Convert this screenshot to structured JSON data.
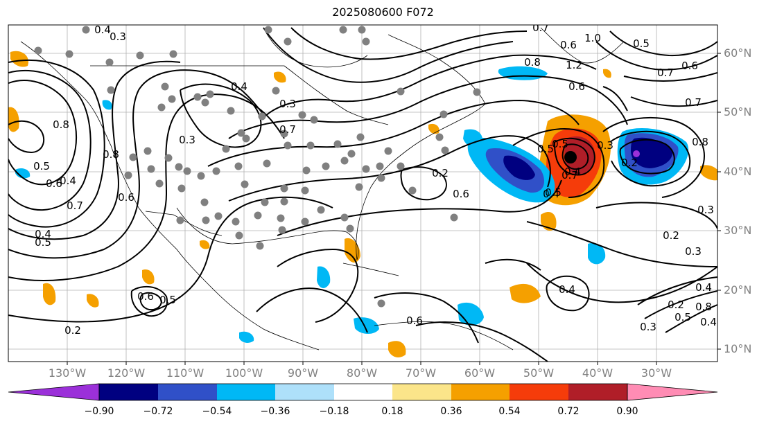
{
  "title": "2025080600 F072",
  "map": {
    "lat_labels": [
      "60°N",
      "50°N",
      "40°N",
      "30°N",
      "20°N",
      "10°N"
    ],
    "lon_labels": [
      "130°W",
      "120°W",
      "110°W",
      "100°W",
      "90°W",
      "80°W",
      "70°W",
      "60°W",
      "50°W",
      "40°W",
      "30°W"
    ],
    "contour_labels": [
      "0.4",
      "0.3",
      "0.7",
      "0.6",
      "0.8",
      "1.0",
      "0.5",
      "0.7",
      "0.6",
      "0.7",
      "0.8",
      "1.2",
      "0.6",
      "0.4",
      "0.3",
      "0.3",
      "0.8",
      "0.5",
      "0.4",
      "0.6",
      "0.7",
      "0.4",
      "0.5",
      "0.6",
      "0.7",
      "0.8",
      "0.2",
      "0.6",
      "0.4",
      "0.5",
      "0.4",
      "0.3",
      "0.2",
      "0.3",
      "0.2",
      "0.3",
      "0.4",
      "0.6",
      "0.5",
      "0.2",
      "0.6",
      "0.8",
      "0.5",
      "0.3",
      "0.4",
      "0.4",
      "0.2",
      "0.5",
      "0.7",
      "0.5"
    ],
    "colors": {
      "purple": "#9b30d9",
      "navy": "#000080",
      "blue": "#3050c8",
      "sky": "#00b8f5",
      "light_sky": "#aee0fa",
      "white": "#ffffff",
      "light_yellow": "#fbe58a",
      "orange": "#f5a000",
      "red_orange": "#f53c0a",
      "dark_red": "#b01e28",
      "pink": "#ff8cb4"
    }
  },
  "colorbar": {
    "ticks": [
      "−0.90",
      "−0.72",
      "−0.54",
      "−0.36",
      "−0.18",
      "0.18",
      "0.36",
      "0.54",
      "0.72",
      "0.90"
    ],
    "colors": [
      "#9b30d9",
      "#000080",
      "#3050c8",
      "#00b8f5",
      "#aee0fa",
      "#ffffff",
      "#fbe58a",
      "#f5a000",
      "#f53c0a",
      "#b01e28",
      "#ff8cb4"
    ]
  }
}
